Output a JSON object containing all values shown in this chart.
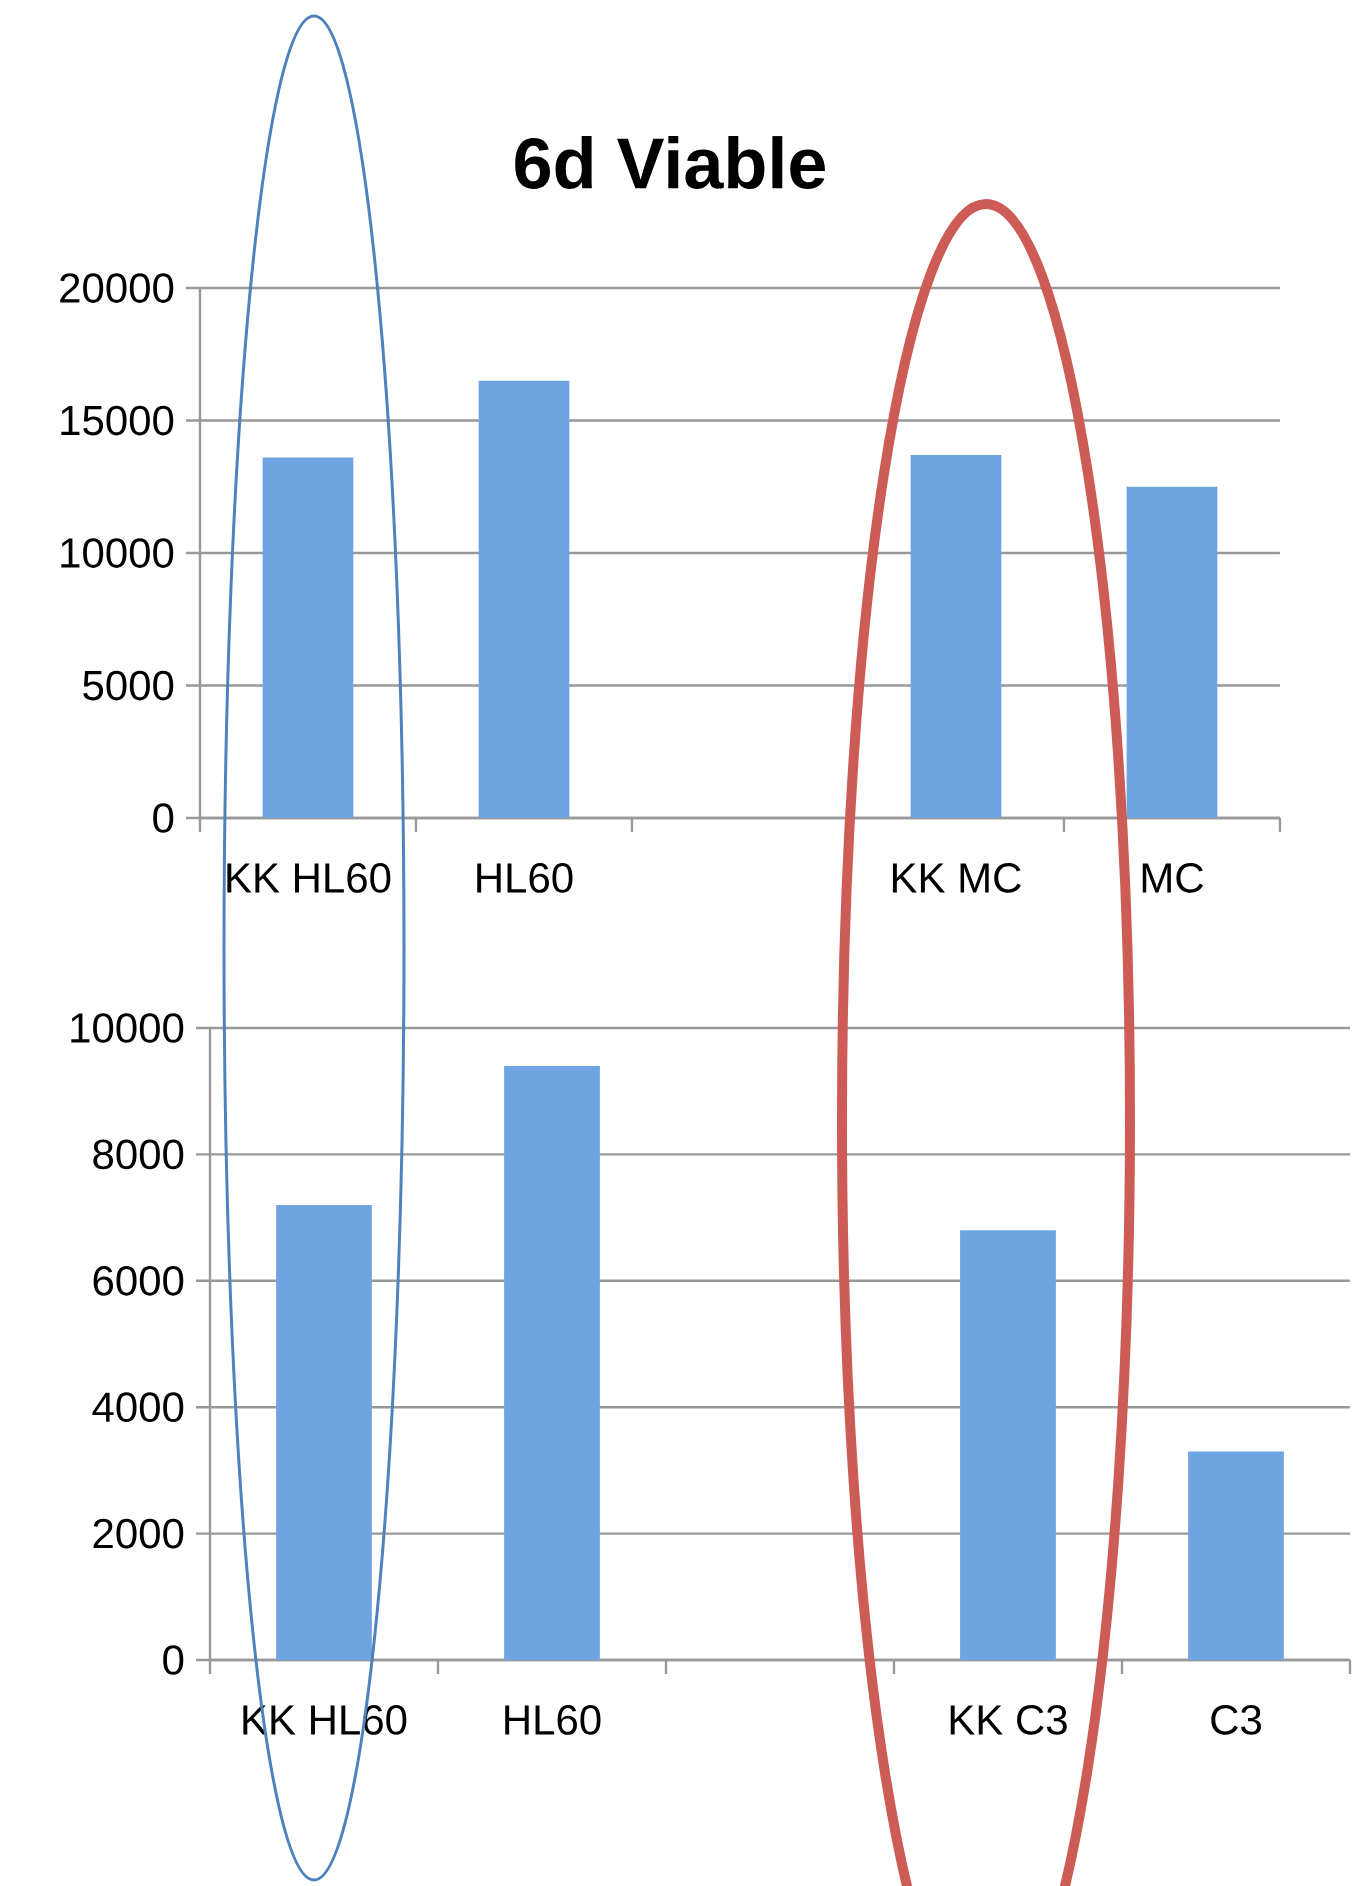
{
  "chart_data": [
    {
      "type": "bar",
      "title": "6d Viable",
      "categories": [
        "KK HL60",
        "HL60",
        null,
        "KK MC",
        "MC"
      ],
      "values": [
        13600,
        16500,
        null,
        13700,
        12500
      ],
      "color": "#6fa4e3",
      "ylim": [
        0,
        20000
      ],
      "yticks": [
        0,
        5000,
        10000,
        15000,
        20000
      ],
      "grid": "y"
    },
    {
      "type": "bar",
      "categories": [
        "KK HL60",
        "HL60",
        null,
        "KK C3",
        "C3"
      ],
      "values": [
        7200,
        9400,
        null,
        6800,
        3300
      ],
      "color": "#6fa4e3",
      "ylim": [
        0,
        10000
      ],
      "yticks": [
        0,
        2000,
        4000,
        6000,
        8000,
        10000
      ],
      "grid": "y"
    }
  ]
}
